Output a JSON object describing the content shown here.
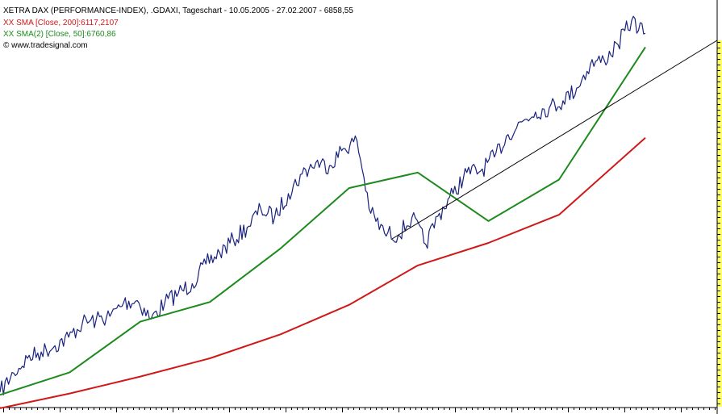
{
  "legend": {
    "title": "XETRA DAX (PERFORMANCE-INDEX), .GDAXI, Tageschart - 10.05.2005 - 27.02.2007 - 6858,55",
    "sma200": "XX SMA [Close, 200]:6117,2107",
    "sma50": "XX SMA(2) [Close, 50]:6760,86",
    "source": "© www.tradesignal.com"
  },
  "colors": {
    "price": "#1a237e",
    "sma200": "#d01818",
    "sma50": "#1d8a1d",
    "trendline": "#000000",
    "strip": "#ffff66",
    "background": "#ffffff"
  },
  "chart_data": {
    "type": "line",
    "x_range": [
      "10.05.2005",
      "27.02.2007"
    ],
    "last_close": 6858.55,
    "y_range": [
      4200,
      7050
    ],
    "grid": false,
    "series": [
      {
        "name": ".GDAXI",
        "points": [
          [
            "10.05.2005",
            4309
          ],
          [
            "24.05.2005",
            4445
          ],
          [
            "07.06.2005",
            4550
          ],
          [
            "21.06.2005",
            4595
          ],
          [
            "05.07.2005",
            4640
          ],
          [
            "19.07.2005",
            4700
          ],
          [
            "02.08.2005",
            4800
          ],
          [
            "16.08.2005",
            4822
          ],
          [
            "30.08.2005",
            4848
          ],
          [
            "13.09.2005",
            4945
          ],
          [
            "27.09.2005",
            4960
          ],
          [
            "11.10.2005",
            4828
          ],
          [
            "25.10.2005",
            4945
          ],
          [
            "08.11.2005",
            5015
          ],
          [
            "22.11.2005",
            5080
          ],
          [
            "06.12.2005",
            5220
          ],
          [
            "20.12.2005",
            5300
          ],
          [
            "03.01.2006",
            5390
          ],
          [
            "17.01.2006",
            5480
          ],
          [
            "31.01.2006",
            5610
          ],
          [
            "14.02.2006",
            5550
          ],
          [
            "28.02.2006",
            5720
          ],
          [
            "14.03.2006",
            5860
          ],
          [
            "28.03.2006",
            5940
          ],
          [
            "11.04.2006",
            5920
          ],
          [
            "25.04.2006",
            6040
          ],
          [
            "09.05.2006",
            6095
          ],
          [
            "23.05.2006",
            5580
          ],
          [
            "06.06.2006",
            5440
          ],
          [
            "20.06.2006",
            5425
          ],
          [
            "04.07.2006",
            5550
          ],
          [
            "18.07.2006",
            5360
          ],
          [
            "01.08.2006",
            5580
          ],
          [
            "15.08.2006",
            5720
          ],
          [
            "29.08.2006",
            5870
          ],
          [
            "12.09.2006",
            5880
          ],
          [
            "26.09.2006",
            5980
          ],
          [
            "10.10.2006",
            6140
          ],
          [
            "24.10.2006",
            6230
          ],
          [
            "07.11.2006",
            6300
          ],
          [
            "21.11.2006",
            6330
          ],
          [
            "05.12.2006",
            6380
          ],
          [
            "19.12.2006",
            6470
          ],
          [
            "02.01.2007",
            6640
          ],
          [
            "16.01.2007",
            6670
          ],
          [
            "30.01.2007",
            6780
          ],
          [
            "13.02.2007",
            6950
          ],
          [
            "27.02.2007",
            6859
          ]
        ]
      },
      {
        "name": "SMA [Close, 200]",
        "points": [
          [
            "10.05.2005",
            4195
          ],
          [
            "20.07.2005",
            4300
          ],
          [
            "30.09.2005",
            4420
          ],
          [
            "10.12.2005",
            4550
          ],
          [
            "20.02.2006",
            4720
          ],
          [
            "01.05.2006",
            4930
          ],
          [
            "10.07.2006",
            5210
          ],
          [
            "20.09.2006",
            5370
          ],
          [
            "01.12.2006",
            5570
          ],
          [
            "27.02.2007",
            6117
          ]
        ]
      },
      {
        "name": "SMA(2) [Close, 50]",
        "points": [
          [
            "10.05.2005",
            4290
          ],
          [
            "20.07.2005",
            4450
          ],
          [
            "30.09.2005",
            4810
          ],
          [
            "10.12.2005",
            4950
          ],
          [
            "20.02.2006",
            5330
          ],
          [
            "01.05.2006",
            5760
          ],
          [
            "10.07.2006",
            5870
          ],
          [
            "20.09.2006",
            5525
          ],
          [
            "01.12.2006",
            5820
          ],
          [
            "27.02.2007",
            6761
          ]
        ]
      }
    ]
  }
}
